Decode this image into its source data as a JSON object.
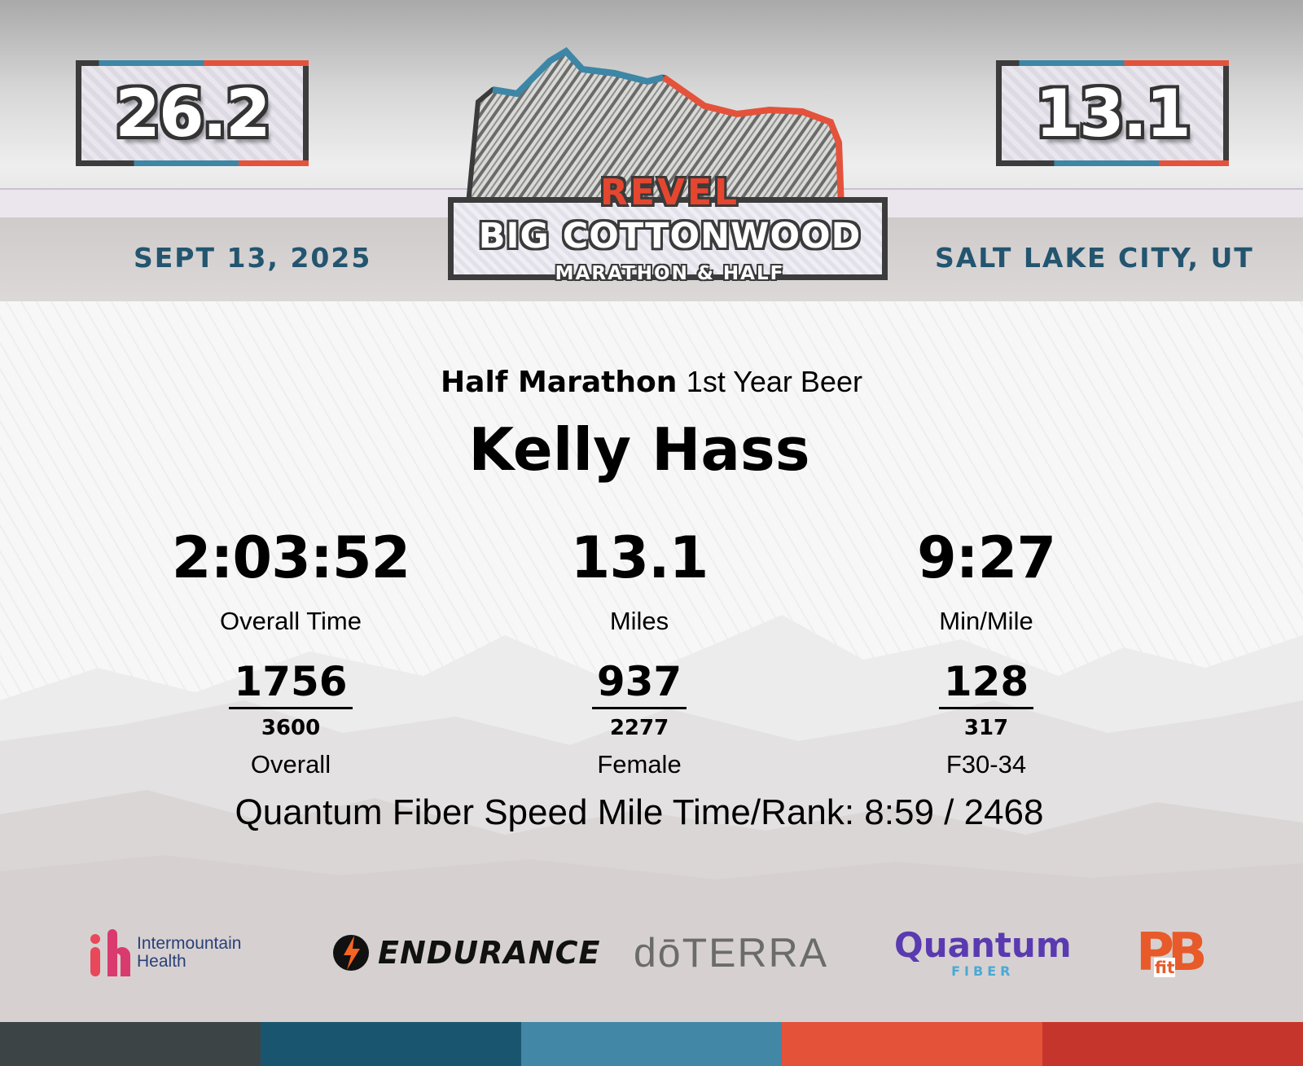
{
  "header": {
    "left_distance": "26.2",
    "right_distance": "13.1",
    "date": "SEPT 13, 2025",
    "location": "SALT LAKE CITY, UT",
    "logo": {
      "top": "REVEL",
      "name": "BIG COTTONWOOD",
      "sub": "MARATHON & HALF"
    }
  },
  "race": {
    "type": "Half Marathon",
    "note": "1st Year Beer",
    "runner": "Kelly Hass"
  },
  "stats": [
    {
      "value": "2:03:52",
      "label": "Overall Time"
    },
    {
      "value": "13.1",
      "label": "Miles"
    },
    {
      "value": "9:27",
      "label": "Min/Mile"
    }
  ],
  "ranks": [
    {
      "place": "1756",
      "total": "3600",
      "label": "Overall"
    },
    {
      "place": "937",
      "total": "2277",
      "label": "Female"
    },
    {
      "place": "128",
      "total": "317",
      "label": "F30-34"
    }
  ],
  "speed_mile": "Quantum Fiber Speed Mile Time/Rank: 8:59 / 2468",
  "sponsors": {
    "intermountain": {
      "line1": "Intermountain",
      "line2": "Health"
    },
    "gatorade": {
      "text": "ENDURANCE"
    },
    "doterra": {
      "text": "dōTERRA"
    },
    "quantum": {
      "line1": "Quantum",
      "line2": "FIBER"
    },
    "pbfit": {
      "text": "PB",
      "sub": "fit"
    }
  },
  "colors": {
    "accent_blue": "#23556f",
    "accent_red": "#e4523b",
    "footer": [
      "#3d4445",
      "#1a5570",
      "#4287a6",
      "#e5523a",
      "#c6352c"
    ]
  }
}
